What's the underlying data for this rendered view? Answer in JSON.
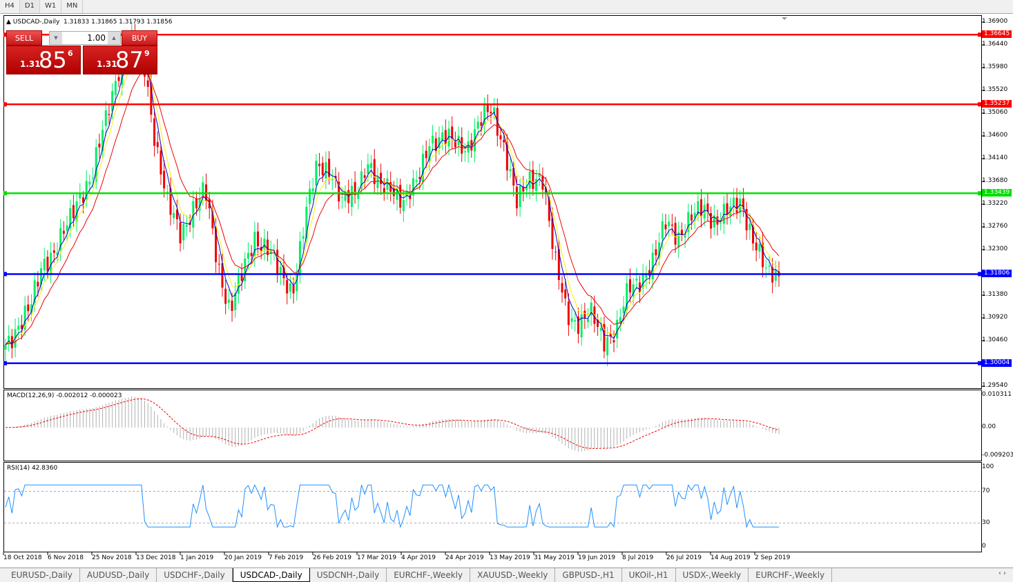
{
  "timeframes": [
    "H4",
    "D1",
    "W1",
    "MN"
  ],
  "active_timeframe": "D1",
  "chart": {
    "title_text": "USDCAD-,Daily",
    "ohlc": "1.31833 1.31865 1.31793 1.31856"
  },
  "trade_panel": {
    "sell_label": "SELL",
    "buy_label": "BUY",
    "lot": "1.00",
    "sell_prefix": "1.31",
    "sell_big": "85",
    "sell_pip": "6",
    "buy_prefix": "1.31",
    "buy_big": "87",
    "buy_pip": "9"
  },
  "price_axis": [
    "1.36900",
    "1.36440",
    "1.35980",
    "1.35520",
    "1.35060",
    "1.34600",
    "1.34140",
    "1.33680",
    "1.33220",
    "1.32760",
    "1.32300",
    "1.31380",
    "1.30920",
    "1.30460",
    "1.29540"
  ],
  "hlines": [
    {
      "price": "1.36645",
      "color": "#ff0000"
    },
    {
      "price": "1.35237",
      "color": "#ff0000"
    },
    {
      "price": "1.33439",
      "color": "#00e000"
    },
    {
      "price": "1.31806",
      "color": "#0000ff"
    },
    {
      "price": "1.30004",
      "color": "#0000ff"
    }
  ],
  "macd": {
    "label": "MACD(12,26,9) -0.002012 -0.000023",
    "axis": [
      "0.010311",
      "0.00",
      "-0.009203"
    ]
  },
  "rsi": {
    "label": "RSI(14) 42.8360",
    "axis": [
      "100",
      "70",
      "30",
      "0"
    ]
  },
  "date_axis": [
    "18 Oct 2018",
    "6 Nov 2018",
    "25 Nov 2018",
    "13 Dec 2018",
    "1 Jan 2019",
    "20 Jan 2019",
    "7 Feb 2019",
    "26 Feb 2019",
    "17 Mar 2019",
    "4 Apr 2019",
    "24 Apr 2019",
    "13 May 2019",
    "31 May 2019",
    "19 Jun 2019",
    "8 Jul 2019",
    "26 Jul 2019",
    "14 Aug 2019",
    "2 Sep 2019"
  ],
  "tabs": [
    "EURUSD-,Daily",
    "AUDUSD-,Daily",
    "USDCHF-,Daily",
    "USDCAD-,Daily",
    "USDCNH-,Daily",
    "EURCHF-,Weekly",
    "XAUUSD-,Weekly",
    "GBPUSD-,H1",
    "UKOil-,H1",
    "USDX-,Weekly",
    "EURCHF-,Weekly"
  ],
  "active_tab": "USDCAD-,Daily",
  "colors": {
    "bull": "#00ee66",
    "bear": "#ee0000",
    "ma_fast": "#0000cc",
    "ma_mid": "#ee0000",
    "ma_slow": "#ffee00",
    "rsi": "#1e90ff"
  },
  "chart_data": {
    "type": "candlestick",
    "ylim": [
      1.2954,
      1.369
    ],
    "closes_sampled": [
      1.3038,
      1.308,
      1.3108,
      1.3205,
      1.3233,
      1.3275,
      1.3345,
      1.3386,
      1.3484,
      1.3595,
      1.3651,
      1.3623,
      1.3456,
      1.3317,
      1.3261,
      1.3317,
      1.3345,
      1.3205,
      1.3108,
      1.3177,
      1.3261,
      1.3233,
      1.3177,
      1.315,
      1.3289,
      1.34,
      1.34,
      1.3317,
      1.3345,
      1.3414,
      1.3345,
      1.3359,
      1.3331,
      1.3359,
      1.3456,
      1.3456,
      1.3442,
      1.3442,
      1.3484,
      1.3512,
      1.3442,
      1.3317,
      1.3373,
      1.3387,
      1.3205,
      1.3108,
      1.308,
      1.3094,
      1.3052,
      1.3066,
      1.315,
      1.3177,
      1.3205,
      1.3289,
      1.3261,
      1.3289,
      1.3317,
      1.3289,
      1.3303,
      1.3331,
      1.3247,
      1.3177,
      1.3186
    ]
  }
}
